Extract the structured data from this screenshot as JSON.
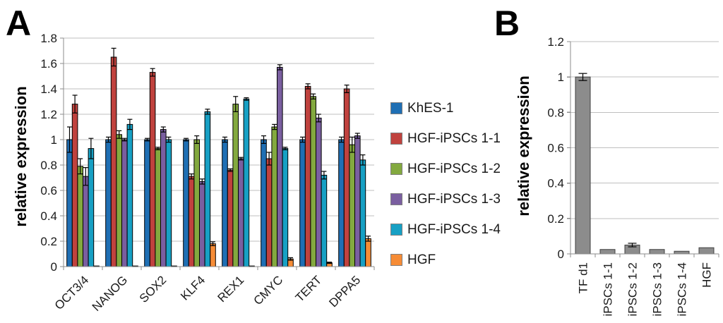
{
  "figure": {
    "panel_a": {
      "label": "A"
    },
    "panel_b": {
      "label": "B"
    }
  },
  "chart_data": [
    {
      "id": "panel-a",
      "type": "bar",
      "title": "",
      "xlabel": "",
      "ylabel": "relative expression",
      "ylim": [
        0,
        1.8
      ],
      "ytick_step": 0.2,
      "ytick_labels": [
        "0",
        "0.2",
        "0.4",
        "0.6",
        "0.8",
        "1",
        "1.2",
        "1.4",
        "1.6",
        "1.8"
      ],
      "grid": true,
      "legend_position": "right",
      "error_bars": true,
      "categories": [
        "OCT3/4",
        "NANOG",
        "SOX2",
        "KLF4",
        "REX1",
        "CMYC",
        "TERT",
        "DPPA5"
      ],
      "series": [
        {
          "name": "KhES-1",
          "color": "#1F6FB4",
          "values": [
            1.0,
            1.0,
            1.0,
            1.0,
            1.0,
            1.0,
            1.0,
            1.0
          ],
          "errors": [
            0.1,
            0.02,
            0.01,
            0.01,
            0.02,
            0.03,
            0.02,
            0.02
          ]
        },
        {
          "name": "HGF-iPSCs 1-1",
          "color": "#C0423E",
          "values": [
            1.28,
            1.65,
            1.53,
            0.71,
            0.76,
            0.85,
            1.42,
            1.4
          ],
          "errors": [
            0.07,
            0.07,
            0.03,
            0.02,
            0.01,
            0.05,
            0.02,
            0.03
          ]
        },
        {
          "name": "HGF-iPSCs 1-2",
          "color": "#83A93F",
          "values": [
            0.79,
            1.04,
            0.93,
            1.0,
            1.28,
            1.1,
            1.34,
            0.96
          ],
          "errors": [
            0.06,
            0.03,
            0.01,
            0.03,
            0.06,
            0.02,
            0.02,
            0.06
          ]
        },
        {
          "name": "HGF-iPSCs 1-3",
          "color": "#7A5FA0",
          "values": [
            0.71,
            1.0,
            1.08,
            0.67,
            0.85,
            1.57,
            1.17,
            1.03
          ],
          "errors": [
            0.07,
            0.01,
            0.02,
            0.02,
            0.01,
            0.02,
            0.03,
            0.02
          ]
        },
        {
          "name": "HGF-iPSCs 1-4",
          "color": "#17A0C4",
          "values": [
            0.93,
            1.12,
            1.0,
            1.22,
            1.32,
            0.93,
            0.72,
            0.84
          ],
          "errors": [
            0.08,
            0.04,
            0.02,
            0.02,
            0.01,
            0.01,
            0.03,
            0.04
          ]
        },
        {
          "name": "HGF",
          "color": "#F68C36",
          "values": [
            0.005,
            0.005,
            0.005,
            0.18,
            0.005,
            0.06,
            0.03,
            0.22
          ],
          "errors": [
            0,
            0,
            0,
            0.015,
            0,
            0.01,
            0.005,
            0.02
          ]
        }
      ]
    },
    {
      "id": "panel-b",
      "type": "bar",
      "title": "",
      "xlabel": "",
      "ylabel": "relative expression",
      "ylim": [
        0,
        1.2
      ],
      "ytick_step": 0.2,
      "ytick_labels": [
        "0",
        "0.2",
        "0.4",
        "0.6",
        "0.8",
        "1",
        "1.2"
      ],
      "grid": true,
      "legend_position": "none",
      "error_bars": true,
      "categories": [
        "TF d1",
        "iPSCs 1-1",
        "iPSCs 1-2",
        "iPSCs 1-3",
        "iPSCs 1-4",
        "HGF"
      ],
      "series": [
        {
          "name": "",
          "color": "#8C8C8C",
          "values": [
            1.0,
            0.025,
            0.05,
            0.025,
            0.015,
            0.035
          ],
          "errors": [
            0.02,
            0,
            0.01,
            0,
            0,
            0
          ]
        }
      ]
    }
  ]
}
